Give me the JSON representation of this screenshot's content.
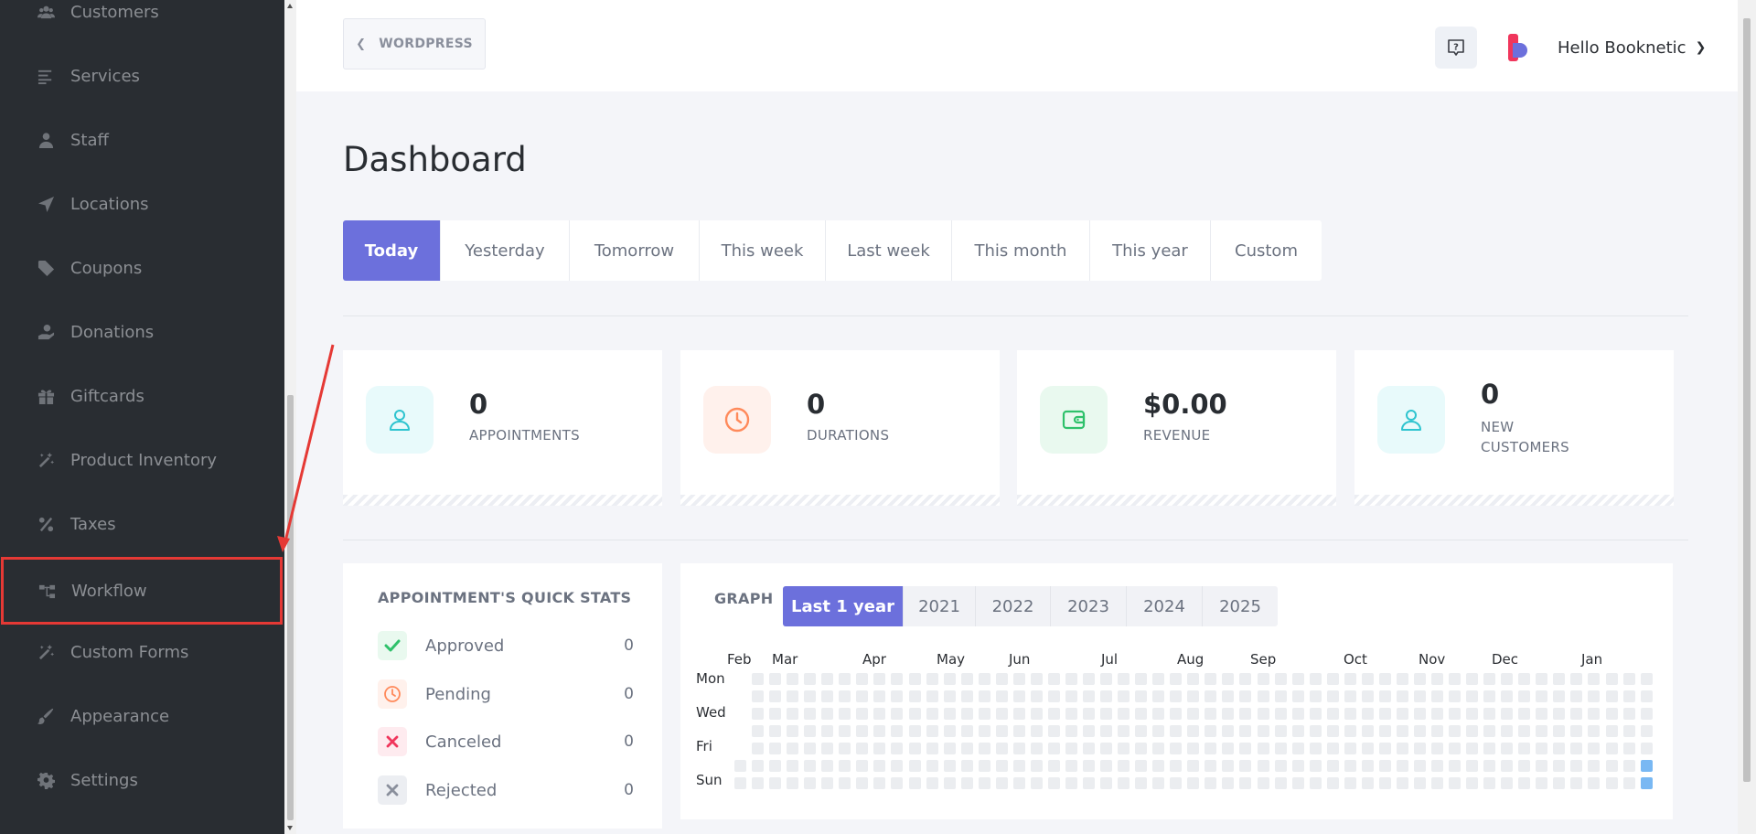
{
  "sidebar": {
    "items": [
      {
        "label": "Customers",
        "icon": "users-icon"
      },
      {
        "label": "Services",
        "icon": "list-icon"
      },
      {
        "label": "Staff",
        "icon": "user-icon"
      },
      {
        "label": "Locations",
        "icon": "location-arrow-icon"
      },
      {
        "label": "Coupons",
        "icon": "tag-icon"
      },
      {
        "label": "Donations",
        "icon": "donate-hand-icon"
      },
      {
        "label": "Giftcards",
        "icon": "gift-icon"
      },
      {
        "label": "Product Inventory",
        "icon": "magic-wand-icon"
      },
      {
        "label": "Taxes",
        "icon": "percent-icon"
      },
      {
        "label": "Workflow",
        "icon": "workflow-icon"
      },
      {
        "label": "Custom Forms",
        "icon": "magic-wand-icon"
      },
      {
        "label": "Appearance",
        "icon": "brush-icon"
      },
      {
        "label": "Settings",
        "icon": "gear-icon"
      }
    ]
  },
  "header": {
    "back_label": "WORDPRESS",
    "user_greeting": "Hello Booknetic"
  },
  "page": {
    "title": "Dashboard"
  },
  "period_tabs": [
    "Today",
    "Yesterday",
    "Tomorrow",
    "This week",
    "Last week",
    "This month",
    "This year",
    "Custom"
  ],
  "stats": [
    {
      "value": "0",
      "label": "APPOINTMENTS",
      "icon": "user-icon",
      "color": "#2ec4cf"
    },
    {
      "value": "0",
      "label": "DURATIONS",
      "icon": "clock-icon",
      "color": "#ff8a5b"
    },
    {
      "value": "$0.00",
      "label": "REVENUE",
      "icon": "wallet-icon",
      "color": "#2fc16b"
    },
    {
      "value": "0",
      "label": "NEW CUSTOMERS",
      "icon": "user-icon",
      "color": "#2ec4cf"
    }
  ],
  "quick_stats": {
    "title": "APPOINTMENT'S QUICK STATS",
    "rows": [
      {
        "label": "Approved",
        "count": "0",
        "icon": "check-icon",
        "color": "#2fc16b"
      },
      {
        "label": "Pending",
        "count": "0",
        "icon": "clock-icon",
        "color": "#ff8a5b"
      },
      {
        "label": "Canceled",
        "count": "0",
        "icon": "x-icon",
        "color": "#f0365c"
      },
      {
        "label": "Rejected",
        "count": "0",
        "icon": "x-icon",
        "color": "#8a8f9c"
      }
    ]
  },
  "graph": {
    "label": "GRAPH",
    "tabs": [
      "Last 1 year",
      "2021",
      "2022",
      "2023",
      "2024",
      "2025"
    ],
    "months": [
      "Feb",
      "Mar",
      "Apr",
      "May",
      "Jun",
      "Jul",
      "Aug",
      "Sep",
      "Oct",
      "Nov",
      "Dec",
      "Jan"
    ],
    "days": [
      "Mon",
      "Wed",
      "Fri",
      "Sun"
    ]
  },
  "colors": {
    "accent": "#6c70dc",
    "sidebar_bg": "#292d32",
    "highlight": "#e53935",
    "heat_empty": "#ebedf0",
    "heat_today": "#79b8f3"
  }
}
